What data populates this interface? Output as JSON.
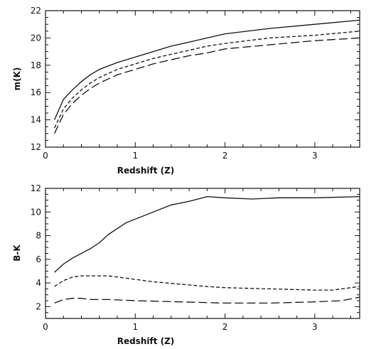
{
  "chart_data": [
    {
      "type": "line",
      "xlabel": "Redshift (Z)",
      "ylabel": "m(K)",
      "xlim": [
        0,
        3.5
      ],
      "ylim": [
        12,
        22
      ],
      "xticks": [
        0,
        1,
        2,
        3
      ],
      "yticks": [
        12,
        14,
        16,
        18,
        20,
        22
      ],
      "xtick_labels": [
        "0",
        "1",
        "2",
        "3"
      ],
      "ytick_labels": [
        "12",
        "14",
        "16",
        "18",
        "20",
        "22"
      ],
      "grid": false,
      "series": [
        {
          "style": "solid",
          "x": [
            0.1,
            0.2,
            0.3,
            0.4,
            0.5,
            0.6,
            0.8,
            1.0,
            1.2,
            1.4,
            1.6,
            1.8,
            2.0,
            2.5,
            3.0,
            3.5
          ],
          "y": [
            14.0,
            15.5,
            16.2,
            16.8,
            17.3,
            17.7,
            18.2,
            18.6,
            19.0,
            19.4,
            19.7,
            20.0,
            20.3,
            20.7,
            21.0,
            21.3
          ]
        },
        {
          "style": "dashed",
          "x": [
            0.1,
            0.2,
            0.3,
            0.4,
            0.5,
            0.6,
            0.8,
            1.0,
            1.2,
            1.4,
            1.6,
            1.8,
            2.0,
            2.5,
            3.0,
            3.5
          ],
          "y": [
            13.4,
            14.8,
            15.6,
            16.2,
            16.7,
            17.1,
            17.7,
            18.1,
            18.5,
            18.8,
            19.1,
            19.4,
            19.6,
            20.0,
            20.2,
            20.5
          ]
        },
        {
          "style": "long-dashed",
          "x": [
            0.1,
            0.2,
            0.3,
            0.4,
            0.5,
            0.6,
            0.8,
            1.0,
            1.2,
            1.4,
            1.6,
            1.8,
            2.0,
            2.5,
            3.0,
            3.5
          ],
          "y": [
            13.0,
            14.4,
            15.2,
            15.8,
            16.3,
            16.7,
            17.3,
            17.7,
            18.1,
            18.4,
            18.7,
            18.9,
            19.2,
            19.5,
            19.8,
            20.0
          ]
        }
      ]
    },
    {
      "type": "line",
      "xlabel": "Redshift (Z)",
      "ylabel": "B-K",
      "xlim": [
        0,
        3.5
      ],
      "ylim": [
        1,
        12
      ],
      "xticks": [
        0,
        1,
        2,
        3
      ],
      "yticks": [
        2,
        4,
        6,
        8,
        10,
        12
      ],
      "xtick_labels": [
        "0",
        "1",
        "2",
        "3"
      ],
      "ytick_labels": [
        "2",
        "4",
        "6",
        "8",
        "10",
        "12"
      ],
      "grid": false,
      "series": [
        {
          "style": "solid",
          "x": [
            0.1,
            0.2,
            0.3,
            0.5,
            0.6,
            0.7,
            0.8,
            0.9,
            1.0,
            1.2,
            1.4,
            1.6,
            1.8,
            2.0,
            2.3,
            2.6,
            3.0,
            3.5
          ],
          "y": [
            4.9,
            5.6,
            6.1,
            6.9,
            7.4,
            8.1,
            8.6,
            9.1,
            9.4,
            10.0,
            10.6,
            10.9,
            11.3,
            11.2,
            11.1,
            11.2,
            11.2,
            11.3
          ]
        },
        {
          "style": "dashed",
          "x": [
            0.1,
            0.2,
            0.3,
            0.4,
            0.5,
            0.7,
            0.9,
            1.2,
            1.5,
            1.8,
            2.0,
            2.5,
            3.0,
            3.2,
            3.5
          ],
          "y": [
            3.7,
            4.2,
            4.5,
            4.6,
            4.6,
            4.6,
            4.4,
            4.1,
            3.9,
            3.7,
            3.6,
            3.5,
            3.4,
            3.4,
            3.7
          ]
        },
        {
          "style": "long-dashed",
          "x": [
            0.1,
            0.2,
            0.3,
            0.4,
            0.5,
            0.7,
            1.0,
            1.5,
            2.0,
            2.5,
            3.0,
            3.3,
            3.5
          ],
          "y": [
            2.3,
            2.6,
            2.7,
            2.7,
            2.6,
            2.6,
            2.5,
            2.4,
            2.3,
            2.3,
            2.4,
            2.5,
            2.8
          ]
        }
      ]
    }
  ]
}
